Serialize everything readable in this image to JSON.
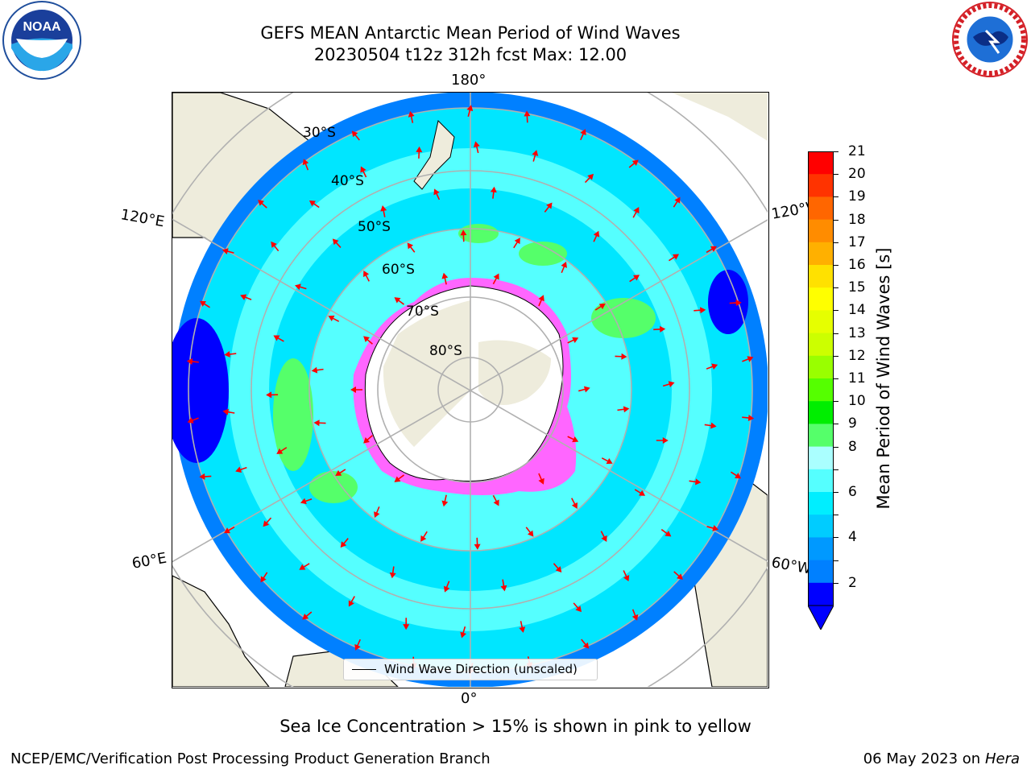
{
  "title": {
    "line1": "GEFS MEAN Antarctic Mean Period of Wind Waves",
    "line2": "20230504 t12z 312h fcst   Max: 12.00"
  },
  "logos": {
    "left": {
      "text": "NOAA",
      "icon": "noaa-logo"
    },
    "right": {
      "icon": "national-weather-service-logo"
    }
  },
  "map": {
    "projection": "south-polar-stereographic",
    "longitude_labels": {
      "top": "180°",
      "bottom": "0°",
      "upper_left": "120°E",
      "upper_right": "120°W",
      "lower_left": "60°E",
      "lower_right": "60°W"
    },
    "latitude_labels": [
      "30°S",
      "40°S",
      "50°S",
      "60°S",
      "70°S",
      "80°S"
    ],
    "colors": {
      "land": "#eeecdc",
      "ocean_low": "#00e6ff",
      "ocean_mid": "#55ffff",
      "ocean_high": "#0080ff",
      "ocean_dark": "#0000ff",
      "green": "#55ff6a",
      "arrow": "#ff0000",
      "grid": "#b0b0b0",
      "ice": "#ff66ff"
    }
  },
  "legend": {
    "label": "Wind Wave Direction (unscaled)"
  },
  "colorbar": {
    "label": "Mean Period of Wind Waves [s]",
    "ticks": [
      "21",
      "20",
      "19",
      "18",
      "17",
      "16",
      "15",
      "14",
      "13",
      "12",
      "11",
      "10",
      "9",
      "8",
      "7",
      "6",
      "5",
      "4",
      "3",
      "2"
    ],
    "tick_labels_shown": [
      "21",
      "20",
      "19",
      "18",
      "17",
      "16",
      "15",
      "14",
      "13",
      "12",
      "11",
      "10",
      "9",
      "8",
      "6",
      "4",
      "2"
    ],
    "colors_top_to_bottom": [
      "#ff0000",
      "#ff3300",
      "#ff6600",
      "#ff8c00",
      "#ffb000",
      "#ffe100",
      "#ffff00",
      "#e6ff00",
      "#ccff00",
      "#99ff00",
      "#55ff00",
      "#00ee00",
      "#55ff6a",
      "#aaffff",
      "#55ffff",
      "#00eeff",
      "#00ccff",
      "#0099ff",
      "#0080ff",
      "#0000ff"
    ],
    "extend_color": "#0000ff"
  },
  "note": "Sea Ice Concentration > 15% is shown in pink to yellow",
  "footer": {
    "left": "NCEP/EMC/Verification Post Processing Product Generation Branch",
    "right_date": "06 May 2023 on",
    "right_host": "Hera"
  }
}
